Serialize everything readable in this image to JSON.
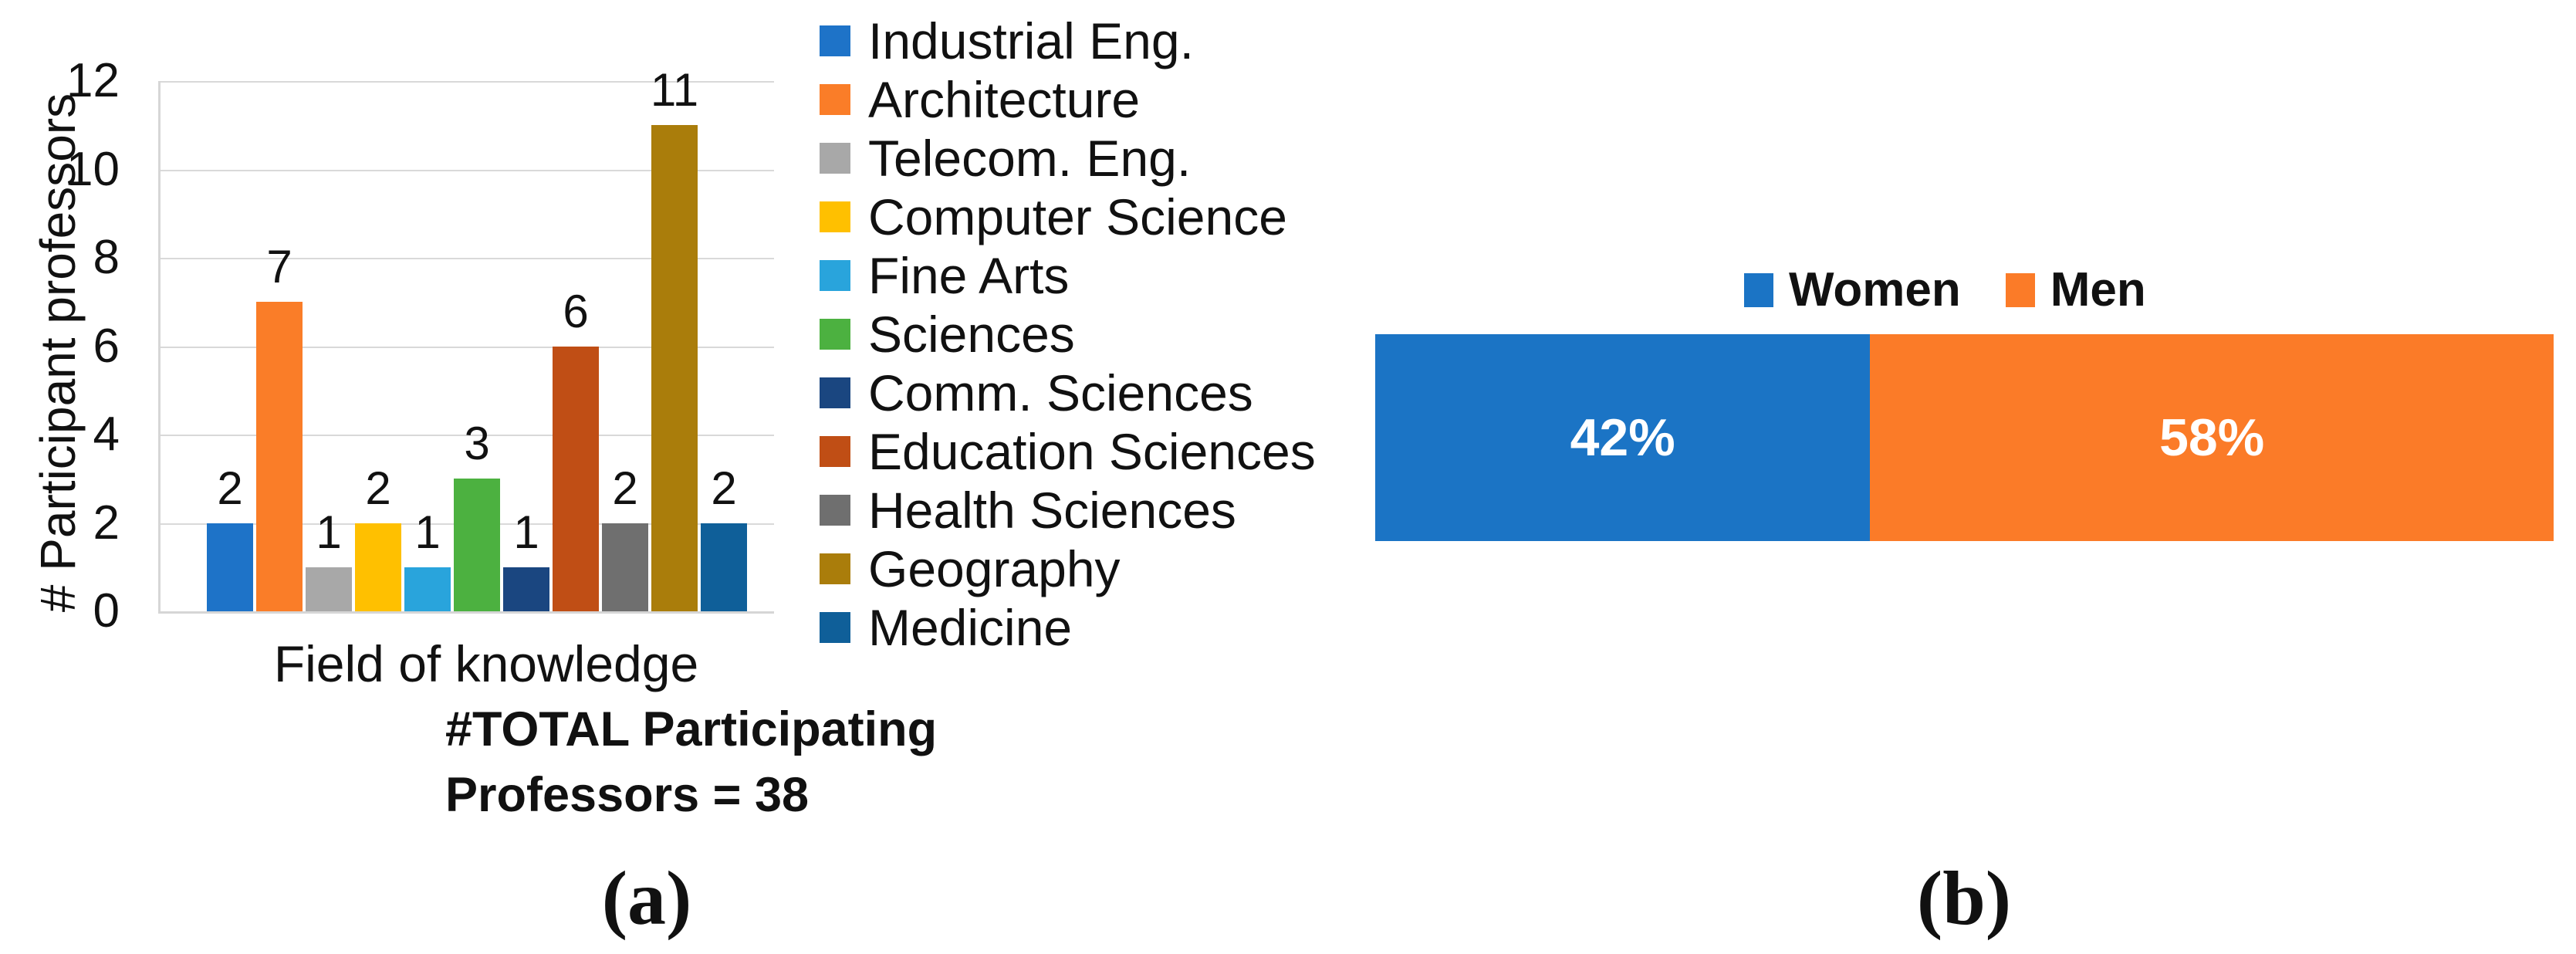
{
  "figure": {
    "panel_a": {
      "caption": "(a)",
      "ylabel": "# Participant professors",
      "xlabel": "Field of knowledge",
      "total_note_line1": "#TOTAL Participating",
      "total_note_line2": "Professors = 38"
    },
    "panel_b": {
      "caption": "(b)"
    }
  },
  "chart_data": [
    {
      "type": "bar",
      "title": "",
      "xlabel": "Field of knowledge",
      "ylabel": "# Participant professors",
      "ylim": [
        0,
        12
      ],
      "ytick_step": 2,
      "grid": true,
      "legend_position": "right",
      "categories": [
        "Industrial Eng.",
        "Architecture",
        "Telecom. Eng.",
        "Computer Science",
        "Fine Arts",
        "Sciences",
        "Comm. Sciences",
        "Education Sciences",
        "Health Sciences",
        "Geography",
        "Medicine"
      ],
      "values": [
        2,
        7,
        1,
        2,
        1,
        3,
        1,
        6,
        2,
        11,
        2
      ],
      "colors": [
        "#1E73C8",
        "#FA7D28",
        "#A8A8A8",
        "#FFC000",
        "#29A4DC",
        "#4CB140",
        "#1A4680",
        "#C04E15",
        "#6F6F6F",
        "#AA7D0B",
        "#0F5F99"
      ],
      "annotation": "#TOTAL Participating Professors = 38",
      "total": 38
    },
    {
      "type": "bar",
      "subtype": "stacked-horizontal-100pct",
      "legend_position": "top",
      "categories": [
        "Women",
        "Men"
      ],
      "values": [
        42,
        58
      ],
      "value_labels": [
        "42%",
        "58%"
      ],
      "colors": [
        "#1B74C5",
        "#FB7B28"
      ]
    }
  ],
  "style": {
    "gridline_color": "#d9d9d9",
    "axis_color": "#d6d6d6",
    "text_color": "#111111",
    "pct_label_color": "#ffffff"
  }
}
